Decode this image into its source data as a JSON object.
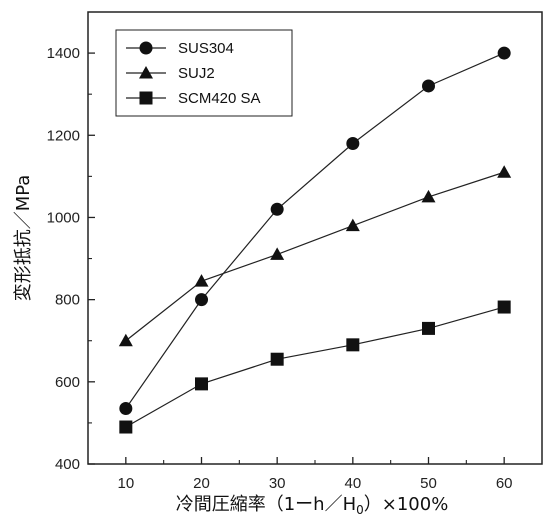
{
  "chart_data": {
    "type": "line",
    "title": "",
    "xlabel": "冷間圧縮率（1ーh／H0）×100%",
    "xlabel_parts": {
      "before": "冷間圧縮率（1ーh／H",
      "sub": "0",
      "after": "）×100%"
    },
    "ylabel": "変形抵抗／MPa",
    "x": [
      10,
      20,
      30,
      40,
      50,
      60
    ],
    "xlim": [
      5,
      65
    ],
    "ylim": [
      400,
      1500
    ],
    "xticks": [
      "10",
      "20",
      "30",
      "40",
      "50",
      "60"
    ],
    "yticks": [
      "400",
      "600",
      "800",
      "1000",
      "1200",
      "1400"
    ],
    "grid": false,
    "legend_position": "top-left",
    "series": [
      {
        "name": "SUS304",
        "marker": "circle",
        "values": [
          535,
          800,
          1020,
          1180,
          1320,
          1400
        ]
      },
      {
        "name": "SUJ2",
        "marker": "triangle",
        "values": [
          700,
          845,
          910,
          980,
          1050,
          1110
        ]
      },
      {
        "name": "SCM420 SA",
        "marker": "square",
        "values": [
          490,
          595,
          655,
          690,
          730,
          782
        ]
      }
    ]
  }
}
